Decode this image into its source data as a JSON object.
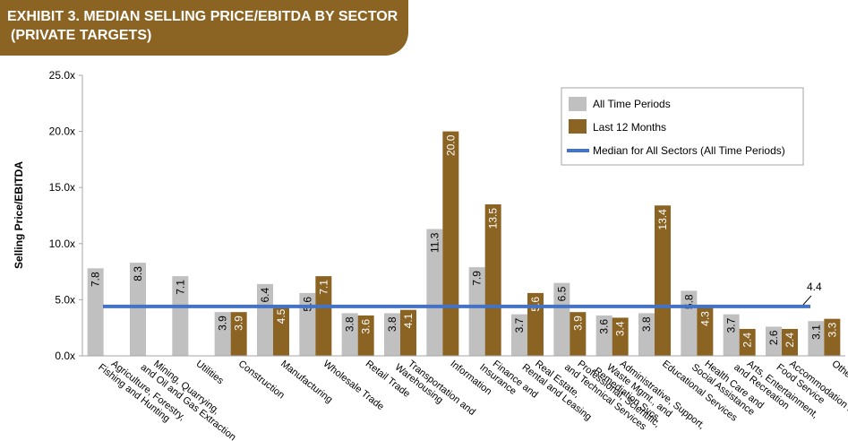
{
  "title": {
    "line1": "EXHIBIT 3. MEDIAN SELLING PRICE/EBITDA BY SECTOR",
    "line2": "(PRIVATE TARGETS)"
  },
  "colors": {
    "all_time": "#c0c0c0",
    "last_12": "#8b6424",
    "median": "#4472c4",
    "banner": "#8b6424"
  },
  "chart_data": {
    "type": "bar",
    "title": "EXHIBIT 3. MEDIAN SELLING PRICE/EBITDA BY SECTOR (PRIVATE TARGETS)",
    "ylabel": "Selling Price/EBITDA",
    "xlabel": "",
    "ylim": [
      0,
      25
    ],
    "yticks": [
      "0.0x",
      "5.0x",
      "10.0x",
      "15.0x",
      "20.0x",
      "25.0x"
    ],
    "grid": false,
    "legend_position": "top-right",
    "categories": [
      [
        "Agriculture, Forestry,",
        "Fishing and Hunting"
      ],
      [
        "Mining, Quarrying,",
        "and Oil and Gas Extraction"
      ],
      [
        "Utilities"
      ],
      [
        "Construction"
      ],
      [
        "Manufacturing"
      ],
      [
        "Wholesale Trade"
      ],
      [
        "Retail Trade"
      ],
      [
        "Transportation and",
        "Warehousing"
      ],
      [
        "Information"
      ],
      [
        "Finance and",
        "Insurance"
      ],
      [
        "Real Estate,",
        "Rental and Leasing"
      ],
      [
        "Professional, Scientific,",
        "and Technical Services"
      ],
      [
        "Administrative, Support,",
        "Waste Mgmt., and",
        "Remediation Svcs."
      ],
      [
        "Educational Services"
      ],
      [
        "Health Care and",
        "Social Assistance"
      ],
      [
        "Arts, Entertainment,",
        "and Recreation"
      ],
      [
        "Accommodation and",
        "Food Service"
      ],
      [
        "Other Services"
      ]
    ],
    "series": [
      {
        "name": "All Time Periods",
        "values": [
          7.8,
          8.3,
          7.1,
          3.9,
          6.4,
          5.6,
          3.8,
          3.8,
          11.3,
          7.9,
          3.7,
          6.5,
          3.6,
          3.8,
          5.8,
          3.7,
          2.6,
          3.1
        ],
        "labels": [
          "7.8",
          "8.3",
          "7.1",
          "3.9",
          "6.4",
          "5.6",
          "3.8",
          "3.8",
          "11.3",
          "7.9",
          "3.7",
          "6.5",
          "3.6",
          "3.8",
          "5.8",
          "3.7",
          "2.6",
          "3.1"
        ]
      },
      {
        "name": "Last 12 Months",
        "values": [
          null,
          null,
          null,
          3.9,
          4.5,
          7.1,
          3.6,
          4.1,
          20.0,
          13.5,
          5.6,
          3.9,
          3.4,
          13.4,
          4.3,
          2.4,
          2.4,
          3.3
        ],
        "labels": [
          "",
          "",
          "",
          "3.9",
          "4.5",
          "7.1",
          "3.6",
          "4.1",
          "20.0",
          "13.5",
          "5.6",
          "3.9",
          "3.4",
          "13.4",
          "4.3",
          "2.4",
          "2.4",
          "3.3"
        ]
      }
    ],
    "median_line": {
      "name": "Median for All Sectors (All Time Periods)",
      "value": 4.4,
      "label": "4.4"
    }
  }
}
